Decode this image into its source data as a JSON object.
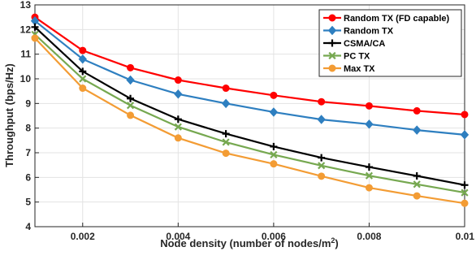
{
  "chart_data": {
    "type": "line",
    "xlabel_main": "Node density (number of nodes/m",
    "xlabel_sup": "2",
    "xlabel_tail": ")",
    "ylabel": "Throughput (bps/Hz)",
    "xlim": [
      0.001,
      0.01
    ],
    "ylim": [
      4,
      13
    ],
    "x": [
      0.001,
      0.002,
      0.003,
      0.004,
      0.005,
      0.006,
      0.007,
      0.008,
      0.009,
      0.01
    ],
    "xticks": [
      0.002,
      0.004,
      0.006,
      0.008,
      0.01
    ],
    "xtick_labels": [
      "0.002",
      "0.004",
      "0.006",
      "0.008",
      "0.01"
    ],
    "yticks": [
      4,
      5,
      6,
      7,
      8,
      9,
      10,
      11,
      12,
      13
    ],
    "ytick_labels": [
      "4",
      "5",
      "6",
      "7",
      "8",
      "9",
      "10",
      "11",
      "12",
      "13"
    ],
    "grid": true,
    "legend_position": "top-right",
    "series": [
      {
        "name": "Random TX (FD capable)",
        "color": "#ff0000",
        "marker": "circle",
        "values": [
          12.5,
          11.15,
          10.45,
          9.95,
          9.62,
          9.33,
          9.07,
          8.9,
          8.7,
          8.55
        ]
      },
      {
        "name": "Random TX",
        "color": "#2e7fc0",
        "marker": "diamond",
        "values": [
          12.35,
          10.8,
          9.95,
          9.38,
          9.0,
          8.65,
          8.35,
          8.16,
          7.92,
          7.73
        ]
      },
      {
        "name": "CSMA/CA",
        "color": "#000000",
        "marker": "plus",
        "values": [
          12.1,
          10.3,
          9.2,
          8.36,
          7.77,
          7.25,
          6.8,
          6.42,
          6.06,
          5.69
        ]
      },
      {
        "name": "PC TX",
        "color": "#76a850",
        "marker": "x",
        "values": [
          11.8,
          10.0,
          8.92,
          8.05,
          7.43,
          6.92,
          6.48,
          6.07,
          5.72,
          5.38
        ]
      },
      {
        "name": "Max TX",
        "color": "#f39c34",
        "marker": "circle",
        "values": [
          11.65,
          9.62,
          8.52,
          7.6,
          6.98,
          6.55,
          6.05,
          5.58,
          5.25,
          4.95
        ]
      }
    ]
  }
}
